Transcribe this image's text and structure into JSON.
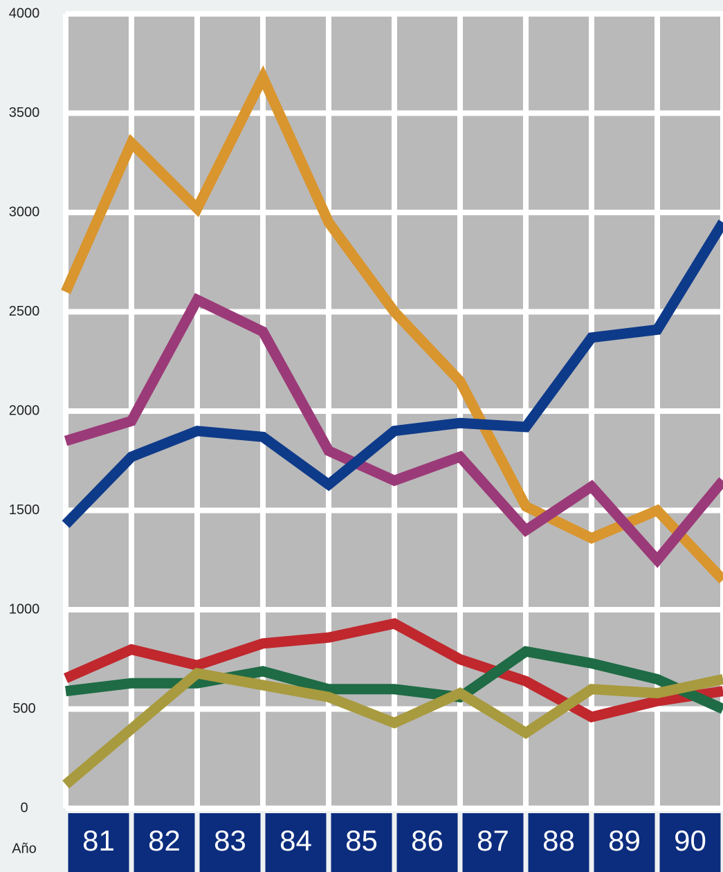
{
  "chart_data": {
    "type": "line",
    "x_label": "Año",
    "x": [
      80,
      81,
      82,
      83,
      84,
      85,
      86,
      87,
      88,
      89,
      90
    ],
    "xlim": [
      80,
      90
    ],
    "xticks": [
      {
        "value": 80.5,
        "label": "81"
      },
      {
        "value": 81.5,
        "label": "82"
      },
      {
        "value": 82.5,
        "label": "83"
      },
      {
        "value": 83.5,
        "label": "84"
      },
      {
        "value": 84.5,
        "label": "85"
      },
      {
        "value": 85.5,
        "label": "86"
      },
      {
        "value": 86.5,
        "label": "87"
      },
      {
        "value": 87.5,
        "label": "88"
      },
      {
        "value": 88.5,
        "label": "89"
      },
      {
        "value": 89.5,
        "label": "90"
      }
    ],
    "ylim": [
      0,
      4000
    ],
    "yticks": [
      0,
      500,
      1000,
      1500,
      2000,
      2500,
      3000,
      3500,
      4000
    ],
    "grid": true,
    "series": [
      {
        "color": "#d9952e",
        "values": [
          2600,
          3350,
          3020,
          3680,
          2950,
          2500,
          2150,
          1520,
          1360,
          1500,
          1150
        ]
      },
      {
        "color": "#9b3a78",
        "values": [
          1850,
          1950,
          2560,
          2400,
          1800,
          1650,
          1770,
          1400,
          1620,
          1250,
          1650
        ]
      },
      {
        "color": "#0e3a8a",
        "values": [
          1430,
          1770,
          1900,
          1870,
          1630,
          1900,
          1940,
          1920,
          2370,
          2410,
          2950
        ]
      },
      {
        "color": "#c0282e",
        "values": [
          655,
          800,
          720,
          830,
          860,
          930,
          750,
          640,
          460,
          540,
          590
        ]
      },
      {
        "color": "#1e6b45",
        "values": [
          590,
          630,
          630,
          690,
          600,
          600,
          560,
          790,
          730,
          650,
          500
        ]
      },
      {
        "color": "#a89a3e",
        "values": [
          120,
          400,
          680,
          620,
          560,
          430,
          580,
          380,
          600,
          580,
          650
        ]
      }
    ]
  }
}
